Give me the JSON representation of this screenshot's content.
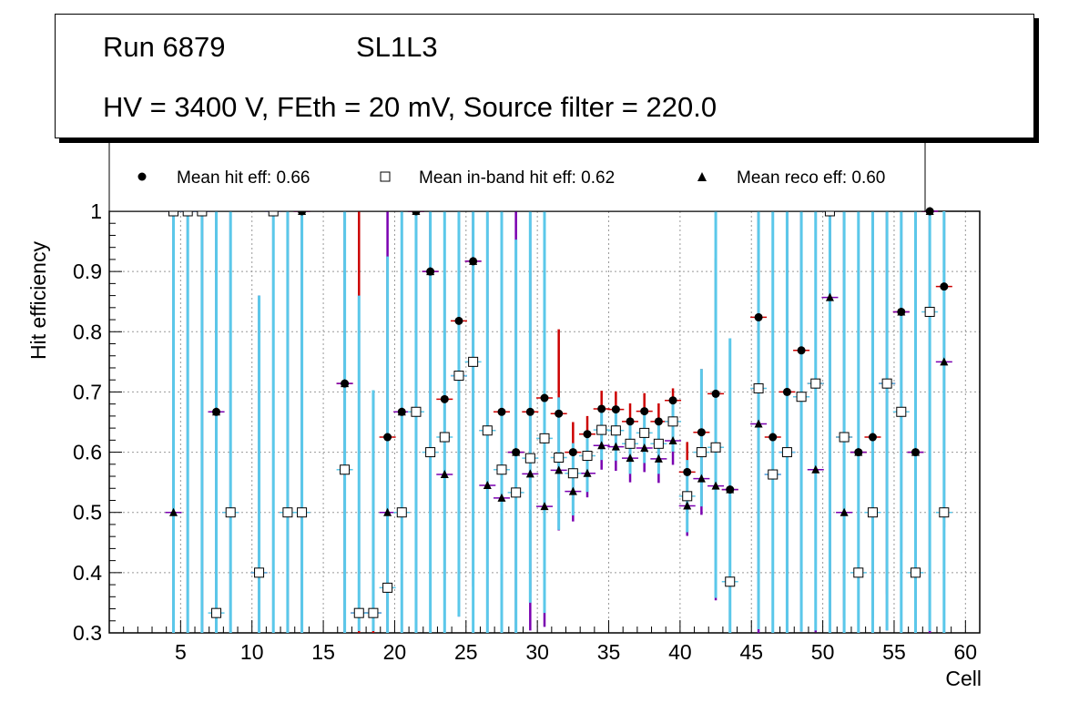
{
  "header": {
    "run": "Run 6879",
    "layer": "SL1L3",
    "conditions": "HV = 3400 V, FEth = 20 mV, Source filter = 220.0"
  },
  "legend": {
    "hit": "Mean hit  eff: 0.66",
    "inband": "Mean in-band hit eff: 0.62",
    "reco": "Mean reco eff: 0.60"
  },
  "colors": {
    "hit_err": "#cc0000",
    "inband_err": "#5bc8ea",
    "reco_err": "#7a00b0",
    "grid": "#999999"
  },
  "chart_data": {
    "type": "scatter",
    "xlabel": "Cell",
    "ylabel": "Hit efficiency",
    "xlim": [
      0,
      61
    ],
    "ylim": [
      0.3,
      1.0
    ],
    "xticks": [
      5,
      10,
      15,
      20,
      25,
      30,
      35,
      40,
      45,
      50,
      55,
      60
    ],
    "yticks": [
      0.3,
      0.4,
      0.5,
      0.6,
      0.7,
      0.8,
      0.9,
      1.0
    ],
    "series": [
      {
        "name": "hit",
        "points": [
          [
            4.5,
            1.0
          ],
          [
            5.5,
            1.0
          ],
          [
            6.5,
            1.0
          ],
          [
            7.5,
            0.667
          ],
          [
            8.5,
            0.5
          ],
          [
            10.5,
            0.4
          ],
          [
            11.5,
            1.0
          ],
          [
            12.5,
            0.5
          ],
          [
            13.5,
            1.0
          ],
          [
            16.5,
            0.714
          ],
          [
            17.5,
            0.333
          ],
          [
            18.5,
            0.333
          ],
          [
            19.5,
            0.625
          ],
          [
            20.5,
            0.667
          ],
          [
            21.5,
            1.0
          ],
          [
            22.5,
            0.9
          ],
          [
            23.5,
            0.688
          ],
          [
            24.5,
            0.818
          ],
          [
            25.5,
            0.917
          ],
          [
            26.5,
            0.636
          ],
          [
            27.5,
            0.667
          ],
          [
            28.5,
            0.6
          ],
          [
            29.5,
            0.667
          ],
          [
            30.5,
            0.69
          ],
          [
            31.5,
            0.664
          ],
          [
            32.5,
            0.6
          ],
          [
            33.5,
            0.63
          ],
          [
            34.5,
            0.672
          ],
          [
            35.5,
            0.671
          ],
          [
            36.5,
            0.651
          ],
          [
            37.5,
            0.668
          ],
          [
            38.5,
            0.651
          ],
          [
            39.5,
            0.686
          ],
          [
            40.5,
            0.567
          ],
          [
            41.5,
            0.633
          ],
          [
            42.5,
            0.697
          ],
          [
            43.5,
            0.538
          ],
          [
            45.5,
            0.824
          ],
          [
            46.5,
            0.625
          ],
          [
            47.5,
            0.7
          ],
          [
            48.5,
            0.769
          ],
          [
            49.5,
            0.714
          ],
          [
            50.5,
            1.0
          ],
          [
            51.5,
            0.625
          ],
          [
            52.5,
            0.6
          ],
          [
            53.5,
            0.625
          ],
          [
            54.5,
            0.714
          ],
          [
            55.5,
            0.833
          ],
          [
            56.5,
            0.6
          ],
          [
            57.5,
            1.0
          ],
          [
            58.5,
            0.875
          ]
        ],
        "err_lo": [
          0.7,
          0.7,
          0.7,
          0.4,
          0.3,
          0.25,
          0.7,
          0.3,
          0.7,
          0.45,
          0.2,
          0.2,
          0.3,
          0.4,
          0.7,
          0.4,
          0.3,
          0.3,
          0.35,
          0.2,
          0.3,
          0.3,
          0.3,
          0.3,
          0.14,
          0.08,
          0.05,
          0.03,
          0.03,
          0.03,
          0.03,
          0.03,
          0.03,
          0.07,
          0.12,
          0.2,
          0.25,
          0.4,
          0.3,
          0.3,
          0.4,
          0.3,
          0.7,
          0.3,
          0.3,
          0.3,
          0.35,
          0.4,
          0.3,
          0.7,
          0.4
        ],
        "err_hi": [
          0.0,
          0.0,
          0.0,
          0.33,
          0.5,
          0.46,
          0.0,
          0.5,
          0.0,
          0.286,
          0.667,
          0.37,
          0.3,
          0.333,
          0.0,
          0.1,
          0.2,
          0.182,
          0.083,
          0.26,
          0.13,
          0.3,
          0.235,
          0.228,
          0.14,
          0.05,
          0.03,
          0.03,
          0.03,
          0.03,
          0.03,
          0.03,
          0.02,
          0.05,
          0.105,
          0.225,
          0.25,
          0.176,
          0.175,
          0.3,
          0.231,
          0.286,
          0.0,
          0.375,
          0.4,
          0.375,
          0.286,
          0.167,
          0.4,
          0.0,
          0.125
        ]
      },
      {
        "name": "inband",
        "points": [
          [
            4.5,
            1.0
          ],
          [
            5.5,
            1.0
          ],
          [
            6.5,
            1.0
          ],
          [
            7.5,
            0.333
          ],
          [
            8.5,
            0.5
          ],
          [
            10.5,
            0.4
          ],
          [
            11.5,
            1.0
          ],
          [
            12.5,
            0.5
          ],
          [
            13.5,
            0.5
          ],
          [
            16.5,
            0.571
          ],
          [
            17.5,
            0.333
          ],
          [
            18.5,
            0.333
          ],
          [
            19.5,
            0.375
          ],
          [
            20.5,
            0.5
          ],
          [
            21.5,
            0.667
          ],
          [
            22.5,
            0.6
          ],
          [
            23.5,
            0.625
          ],
          [
            24.5,
            0.727
          ],
          [
            25.5,
            0.75
          ],
          [
            26.5,
            0.636
          ],
          [
            27.5,
            0.571
          ],
          [
            28.5,
            0.533
          ],
          [
            29.5,
            0.59
          ],
          [
            30.5,
            0.623
          ],
          [
            31.5,
            0.591
          ],
          [
            32.5,
            0.565
          ],
          [
            33.5,
            0.594
          ],
          [
            34.5,
            0.637
          ],
          [
            35.5,
            0.636
          ],
          [
            36.5,
            0.614
          ],
          [
            37.5,
            0.632
          ],
          [
            38.5,
            0.614
          ],
          [
            39.5,
            0.651
          ],
          [
            40.5,
            0.527
          ],
          [
            41.5,
            0.6
          ],
          [
            42.5,
            0.608
          ],
          [
            43.5,
            0.385
          ],
          [
            45.5,
            0.706
          ],
          [
            46.5,
            0.563
          ],
          [
            47.5,
            0.6
          ],
          [
            48.5,
            0.692
          ],
          [
            49.5,
            0.714
          ],
          [
            50.5,
            1.0
          ],
          [
            51.5,
            0.625
          ],
          [
            52.5,
            0.4
          ],
          [
            53.5,
            0.5
          ],
          [
            54.5,
            0.714
          ],
          [
            55.5,
            0.667
          ],
          [
            56.5,
            0.4
          ],
          [
            57.5,
            0.833
          ],
          [
            58.5,
            0.5
          ]
        ],
        "err_lo": [
          0.7,
          0.7,
          0.7,
          0.1,
          0.2,
          0.1,
          0.7,
          0.2,
          0.2,
          0.3,
          0.03,
          0.03,
          0.08,
          0.2,
          0.4,
          0.3,
          0.35,
          0.4,
          0.45,
          0.35,
          0.3,
          0.25,
          0.24,
          0.29,
          0.12,
          0.07,
          0.06,
          0.05,
          0.05,
          0.05,
          0.05,
          0.05,
          0.05,
          0.06,
          0.09,
          0.25,
          0.09,
          0.4,
          0.27,
          0.3,
          0.39,
          0.41,
          0.7,
          0.33,
          0.1,
          0.2,
          0.41,
          0.37,
          0.1,
          0.53,
          0.2
        ],
        "err_hi": [
          0.0,
          0.0,
          0.0,
          0.67,
          0.5,
          0.46,
          0.0,
          0.5,
          0.5,
          0.43,
          0.527,
          0.37,
          0.55,
          0.5,
          0.333,
          0.4,
          0.375,
          0.273,
          0.25,
          0.364,
          0.429,
          0.42,
          0.41,
          0.377,
          0.1,
          0.05,
          0.04,
          0.04,
          0.04,
          0.04,
          0.04,
          0.04,
          0.04,
          0.06,
          0.138,
          0.392,
          0.404,
          0.294,
          0.437,
          0.4,
          0.308,
          0.286,
          0.0,
          0.375,
          0.6,
          0.5,
          0.286,
          0.333,
          0.6,
          0.167,
          0.5
        ]
      },
      {
        "name": "reco",
        "points": [
          [
            4.5,
            0.5
          ],
          [
            5.5,
            1.0
          ],
          [
            6.5,
            1.0
          ],
          [
            7.5,
            0.667
          ],
          [
            8.5,
            0.5
          ],
          [
            10.5,
            0.4
          ],
          [
            11.5,
            1.0
          ],
          [
            12.5,
            0.5
          ],
          [
            13.5,
            1.0
          ],
          [
            16.5,
            0.714
          ],
          [
            17.5,
            0.333
          ],
          [
            18.5,
            0.333
          ],
          [
            19.5,
            0.5
          ],
          [
            20.5,
            0.667
          ],
          [
            21.5,
            1.0
          ],
          [
            22.5,
            0.9
          ],
          [
            23.5,
            0.563
          ],
          [
            24.5,
            0.727
          ],
          [
            25.5,
            0.917
          ],
          [
            26.5,
            0.545
          ],
          [
            27.5,
            0.524
          ],
          [
            28.5,
            0.6
          ],
          [
            29.5,
            0.564
          ],
          [
            30.5,
            0.51
          ],
          [
            31.5,
            0.57
          ],
          [
            32.5,
            0.535
          ],
          [
            33.5,
            0.565
          ],
          [
            34.5,
            0.611
          ],
          [
            35.5,
            0.609
          ],
          [
            36.5,
            0.59
          ],
          [
            37.5,
            0.607
          ],
          [
            38.5,
            0.589
          ],
          [
            39.5,
            0.619
          ],
          [
            40.5,
            0.511
          ],
          [
            41.5,
            0.556
          ],
          [
            42.5,
            0.544
          ],
          [
            43.5,
            0.538
          ],
          [
            45.5,
            0.647
          ],
          [
            46.5,
            0.563
          ],
          [
            47.5,
            0.6
          ],
          [
            48.5,
            0.692
          ],
          [
            49.5,
            0.571
          ],
          [
            50.5,
            0.857
          ],
          [
            51.5,
            0.5
          ],
          [
            52.5,
            0.6
          ],
          [
            53.5,
            0.5
          ],
          [
            54.5,
            0.714
          ],
          [
            55.5,
            0.833
          ],
          [
            56.5,
            0.6
          ],
          [
            57.5,
            1.0
          ],
          [
            58.5,
            0.75
          ]
        ],
        "err_lo": [
          0.2,
          0.7,
          0.7,
          0.4,
          0.2,
          0.1,
          0.7,
          0.2,
          0.7,
          0.45,
          0.03,
          0.03,
          0.2,
          0.4,
          0.7,
          0.4,
          0.26,
          0.4,
          0.54,
          0.25,
          0.22,
          0.3,
          0.26,
          0.2,
          0.1,
          0.05,
          0.04,
          0.04,
          0.04,
          0.04,
          0.04,
          0.04,
          0.04,
          0.05,
          0.06,
          0.19,
          0.24,
          0.35,
          0.26,
          0.3,
          0.39,
          0.27,
          0.56,
          0.2,
          0.3,
          0.2,
          0.41,
          0.53,
          0.3,
          0.7,
          0.45
        ],
        "err_hi": [
          0.5,
          0.0,
          0.0,
          0.333,
          0.5,
          0.46,
          0.0,
          0.5,
          0.0,
          0.286,
          0.527,
          0.37,
          0.5,
          0.333,
          0.0,
          0.1,
          0.33,
          0.273,
          0.083,
          0.45,
          0.476,
          0.4,
          0.436,
          0.49,
          0.12,
          0.05,
          0.04,
          0.04,
          0.04,
          0.04,
          0.04,
          0.04,
          0.04,
          0.05,
          0.1,
          0.2,
          0.25,
          0.353,
          0.437,
          0.4,
          0.308,
          0.429,
          0.143,
          0.5,
          0.4,
          0.5,
          0.286,
          0.167,
          0.4,
          0.0,
          0.25
        ]
      }
    ]
  }
}
